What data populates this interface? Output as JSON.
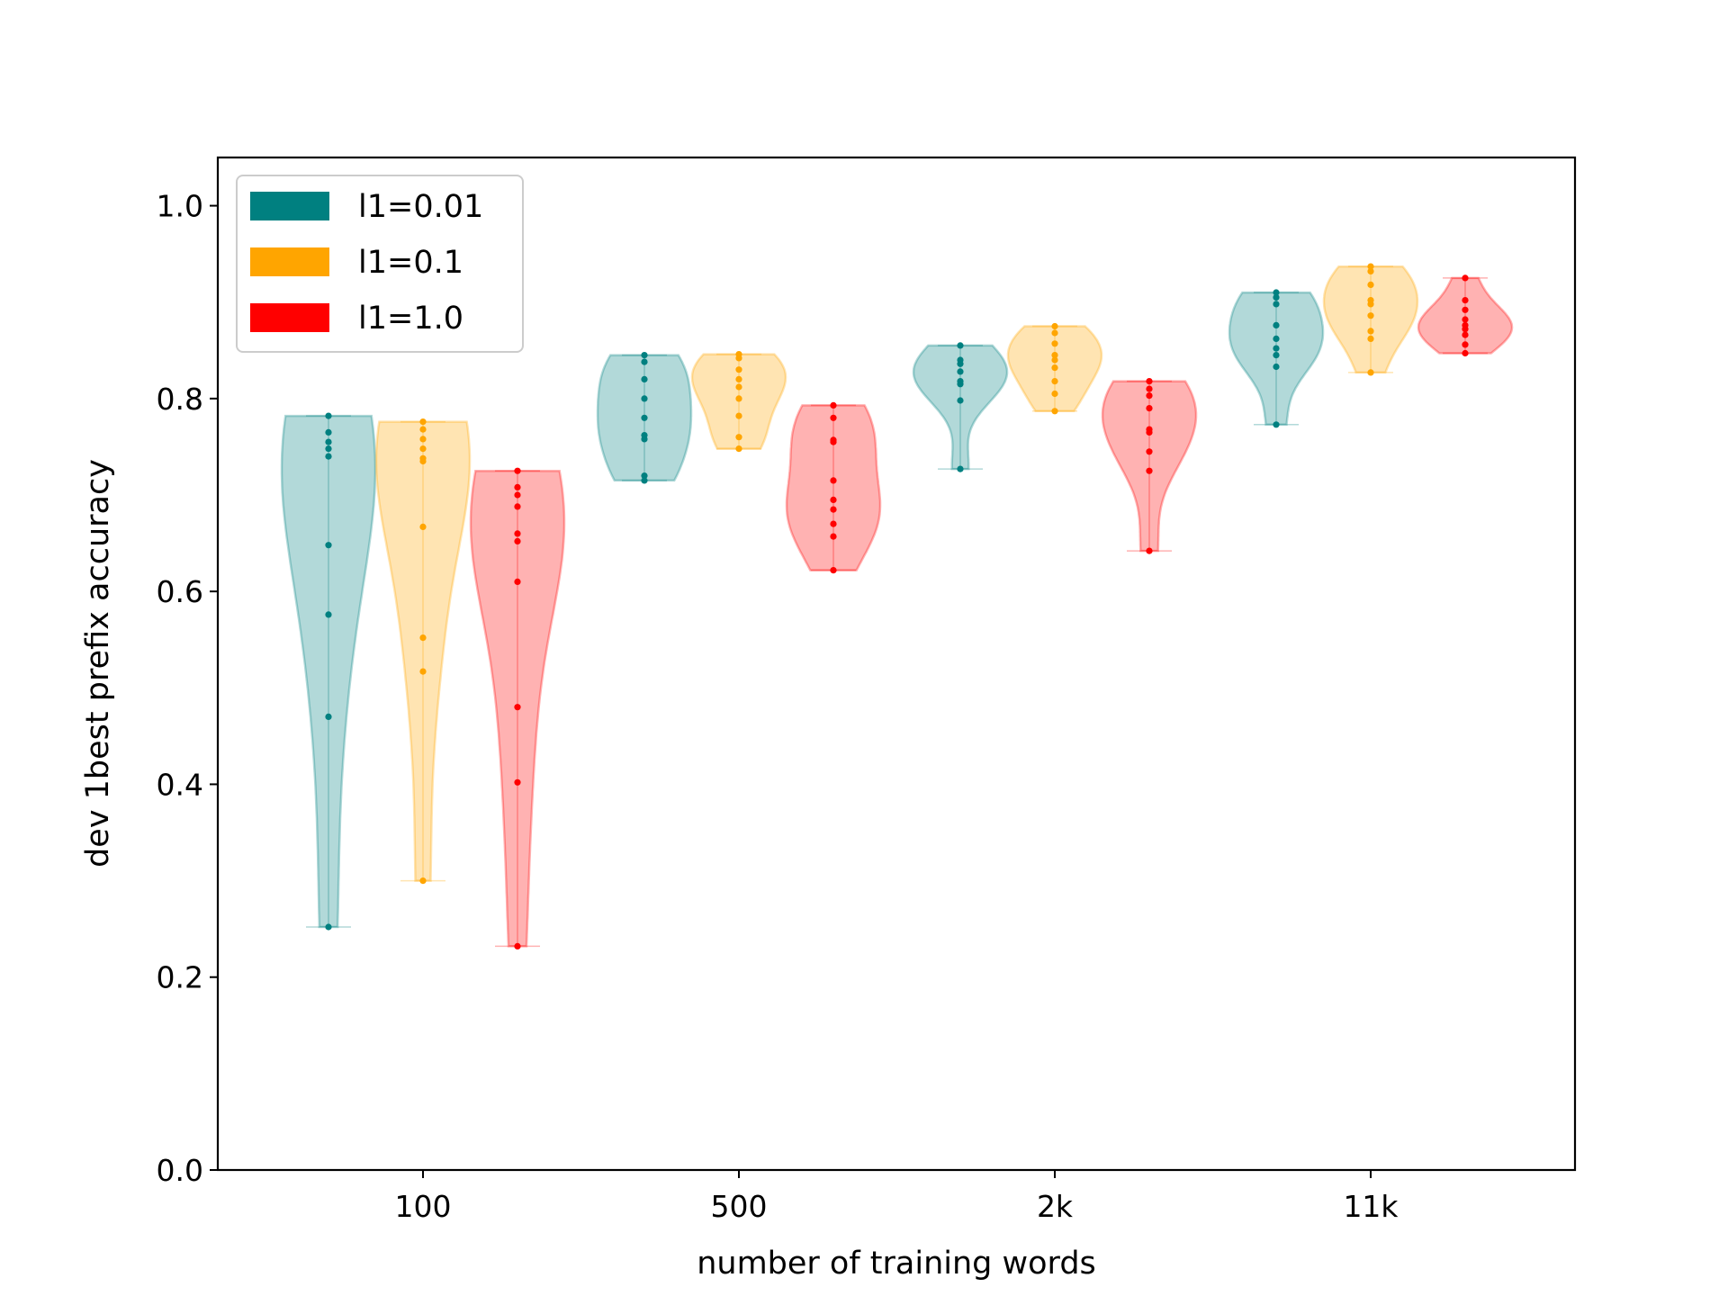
{
  "chart_data": {
    "type": "violin",
    "title": "",
    "xlabel": "number of training words",
    "ylabel": "dev 1best prefix accuracy",
    "categories": [
      "100",
      "500",
      "2k",
      "11k"
    ],
    "ylim": [
      0,
      1.05
    ],
    "yticks": [
      "0.0",
      "0.2",
      "0.4",
      "0.6",
      "0.8",
      "1.0"
    ],
    "grid": false,
    "legend_position": "upper left",
    "series": [
      {
        "name": "l1=0.01",
        "color": "#008080",
        "points": [
          [
            0.782,
            0.765,
            0.755,
            0.748,
            0.74,
            0.648,
            0.576,
            0.47,
            0.252
          ],
          [
            0.845,
            0.838,
            0.82,
            0.8,
            0.78,
            0.762,
            0.758,
            0.72,
            0.715
          ],
          [
            0.855,
            0.84,
            0.836,
            0.828,
            0.818,
            0.815,
            0.798,
            0.727
          ],
          [
            0.91,
            0.905,
            0.898,
            0.876,
            0.862,
            0.852,
            0.845,
            0.833,
            0.773
          ]
        ]
      },
      {
        "name": "l1=0.1",
        "color": "#FFA500",
        "points": [
          [
            0.776,
            0.768,
            0.758,
            0.748,
            0.738,
            0.735,
            0.667,
            0.552,
            0.517,
            0.3
          ],
          [
            0.846,
            0.842,
            0.83,
            0.82,
            0.812,
            0.8,
            0.782,
            0.76,
            0.748
          ],
          [
            0.875,
            0.868,
            0.857,
            0.845,
            0.84,
            0.832,
            0.818,
            0.805,
            0.787
          ],
          [
            0.937,
            0.932,
            0.918,
            0.902,
            0.898,
            0.886,
            0.87,
            0.862,
            0.827
          ]
        ]
      },
      {
        "name": "l1=1.0",
        "color": "#FF0000",
        "points": [
          [
            0.725,
            0.708,
            0.7,
            0.688,
            0.66,
            0.652,
            0.61,
            0.48,
            0.402,
            0.232
          ],
          [
            0.793,
            0.78,
            0.757,
            0.755,
            0.715,
            0.695,
            0.685,
            0.67,
            0.657,
            0.622
          ],
          [
            0.818,
            0.81,
            0.803,
            0.79,
            0.768,
            0.765,
            0.745,
            0.725,
            0.642
          ],
          [
            0.925,
            0.902,
            0.892,
            0.882,
            0.876,
            0.872,
            0.866,
            0.856,
            0.847
          ]
        ]
      }
    ]
  }
}
